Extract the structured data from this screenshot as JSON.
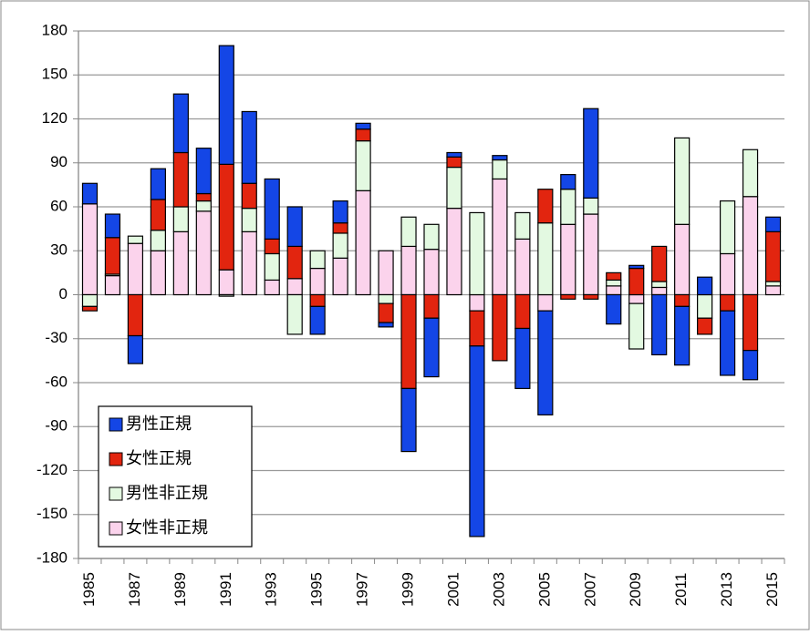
{
  "chart_data": {
    "type": "bar",
    "stacked": true,
    "grid": true,
    "legend": "lower left",
    "categories": [
      "1985",
      null,
      "1987",
      null,
      "1989",
      null,
      "1991",
      null,
      "1993",
      null,
      "1995",
      null,
      "1997",
      null,
      "1999",
      null,
      "2001",
      null,
      "2003",
      null,
      "2005",
      null,
      "2007",
      null,
      "2009",
      null,
      "2011",
      null,
      "2013",
      null,
      "2015"
    ],
    "series": [
      {
        "name": "男性正規",
        "color": "#1446e6",
        "values": [
          14,
          16,
          -19,
          21,
          40,
          31,
          81,
          49,
          41,
          27,
          -19,
          15,
          4,
          -3,
          -43,
          -40,
          3,
          -130,
          3,
          -41,
          -71,
          10,
          61,
          -20,
          2,
          -41,
          -40,
          12,
          -44,
          -20,
          10
        ]
      },
      {
        "name": "女性正規",
        "color": "#e2250f",
        "values": [
          -3,
          25,
          -28,
          21,
          37,
          5,
          72,
          17,
          10,
          22,
          -8,
          7,
          8,
          -13,
          -64,
          -16,
          7,
          -24,
          -45,
          -23,
          23,
          -3,
          -3,
          5,
          18,
          24,
          -8,
          -11,
          -11,
          -38,
          34
        ]
      },
      {
        "name": "男性非正規",
        "color": "#e3f9e1",
        "values": [
          -8,
          1,
          5,
          14,
          17,
          7,
          -1,
          16,
          18,
          -27,
          12,
          17,
          34,
          -6,
          20,
          17,
          28,
          56,
          13,
          18,
          49,
          24,
          11,
          4,
          -31,
          4,
          59,
          -16,
          36,
          32,
          3
        ]
      },
      {
        "name": "女性非正規",
        "color": "#fbd3ec",
        "values": [
          62,
          13,
          35,
          30,
          43,
          57,
          17,
          43,
          10,
          11,
          18,
          25,
          71,
          30,
          33,
          31,
          59,
          -11,
          79,
          38,
          -11,
          48,
          55,
          6,
          -6,
          5,
          48,
          0,
          28,
          67,
          6
        ]
      }
    ],
    "ylim": [
      -180,
      180
    ],
    "yticks": [
      -180,
      -150,
      -120,
      -90,
      -60,
      -30,
      0,
      30,
      60,
      90,
      120,
      150,
      180
    ]
  }
}
